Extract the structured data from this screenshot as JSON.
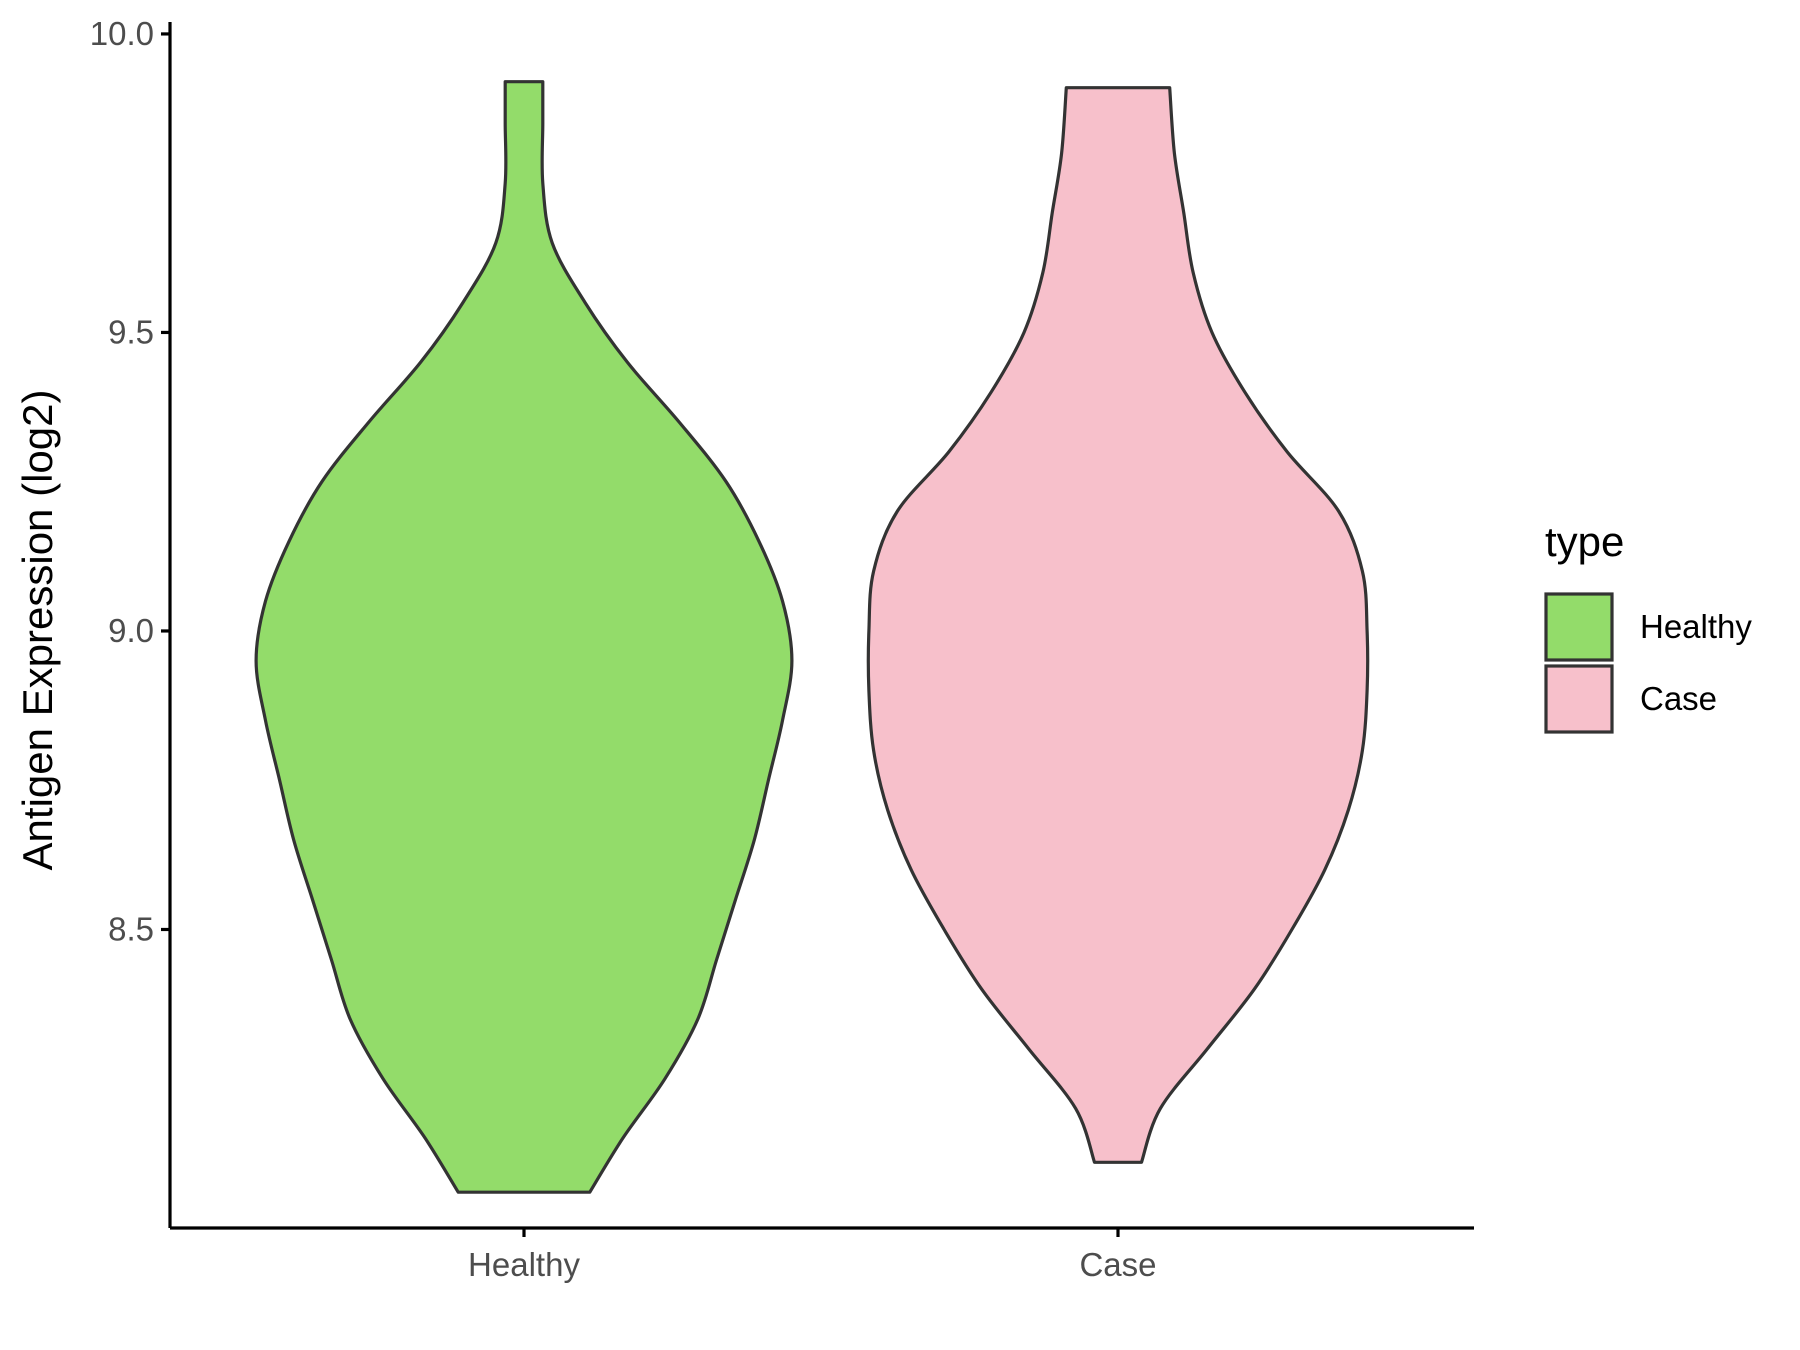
{
  "chart_data": {
    "type": "violin",
    "title": "",
    "xlabel": "",
    "ylabel": "Antigen Expression (log2)",
    "ylim": [
      8.0,
      10.02
    ],
    "yticks": [
      "8.5",
      "9.0",
      "9.5",
      "10.0"
    ],
    "yticks_values": [
      8.5,
      9.0,
      9.5,
      10.0
    ],
    "categories": [
      "Healthy",
      "Case"
    ],
    "grid": false,
    "legend": {
      "title": "type",
      "position": "right",
      "entries": [
        "Healthy",
        "Case"
      ]
    },
    "series": [
      {
        "name": "Healthy",
        "color": "#93dc6a",
        "min": 8.06,
        "max": 9.92,
        "profile": [
          [
            8.06,
            0.14
          ],
          [
            8.15,
            0.21
          ],
          [
            8.25,
            0.3
          ],
          [
            8.35,
            0.37
          ],
          [
            8.45,
            0.41
          ],
          [
            8.55,
            0.45
          ],
          [
            8.65,
            0.49
          ],
          [
            8.75,
            0.52
          ],
          [
            8.85,
            0.55
          ],
          [
            8.95,
            0.57
          ],
          [
            9.05,
            0.55
          ],
          [
            9.15,
            0.5
          ],
          [
            9.25,
            0.43
          ],
          [
            9.35,
            0.33
          ],
          [
            9.45,
            0.22
          ],
          [
            9.55,
            0.13
          ],
          [
            9.65,
            0.06
          ],
          [
            9.75,
            0.04
          ],
          [
            9.85,
            0.04
          ],
          [
            9.92,
            0.04
          ]
        ]
      },
      {
        "name": "Case",
        "color": "#f7c0cb",
        "min": 8.11,
        "max": 9.91,
        "profile": [
          [
            8.11,
            0.05
          ],
          [
            8.2,
            0.09
          ],
          [
            8.3,
            0.19
          ],
          [
            8.4,
            0.29
          ],
          [
            8.5,
            0.37
          ],
          [
            8.6,
            0.44
          ],
          [
            8.7,
            0.49
          ],
          [
            8.8,
            0.52
          ],
          [
            8.9,
            0.53
          ],
          [
            9.0,
            0.53
          ],
          [
            9.1,
            0.52
          ],
          [
            9.2,
            0.47
          ],
          [
            9.3,
            0.36
          ],
          [
            9.4,
            0.27
          ],
          [
            9.5,
            0.2
          ],
          [
            9.6,
            0.16
          ],
          [
            9.7,
            0.14
          ],
          [
            9.8,
            0.12
          ],
          [
            9.91,
            0.11
          ]
        ]
      }
    ]
  }
}
